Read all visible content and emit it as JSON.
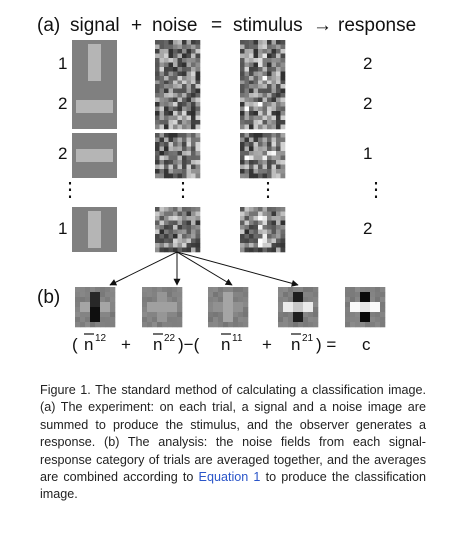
{
  "header": {
    "label": "(a)",
    "signal": "signal",
    "plus": "+",
    "noise": "noise",
    "equals": "=",
    "stimulus": "stimulus",
    "arrow": "→",
    "response": "response"
  },
  "trials": [
    {
      "signal_number": "1",
      "signal_orientation": "vertical",
      "response": "2"
    },
    {
      "signal_number": "2",
      "signal_orientation": "horizontal",
      "response": "2"
    },
    {
      "signal_number": "2",
      "signal_orientation": "horizontal",
      "response": "1"
    },
    {
      "signal_number": "1",
      "signal_orientation": "vertical",
      "response": "2"
    }
  ],
  "ellipsis": "⋮",
  "panel_b": {
    "label": "(b)",
    "formula": {
      "open1": "(",
      "n12_sup": "12",
      "plus1": "+",
      "n22_sup": "22",
      "minus_open": ")−(",
      "n11_sup": "11",
      "plus2": "+",
      "n21_sup": "21",
      "close_eq": ") =",
      "result": "c"
    }
  },
  "caption": {
    "text_before_link": "Figure 1. The standard method of calculating a classification image. (a) The experiment: on each trial, a signal and a noise image are summed to produce the stimulus, and the observer generates a response. (b) The analysis: the noise fields from each signal-response category of trials are averaged together, and the averages are combined according to ",
    "link_text": "Equation 1",
    "text_after_link": " to produce the classification image."
  },
  "colors": {
    "link": "#2a55c9",
    "signal_bg": "#808080",
    "signal_bar": "#b5b5b5"
  }
}
